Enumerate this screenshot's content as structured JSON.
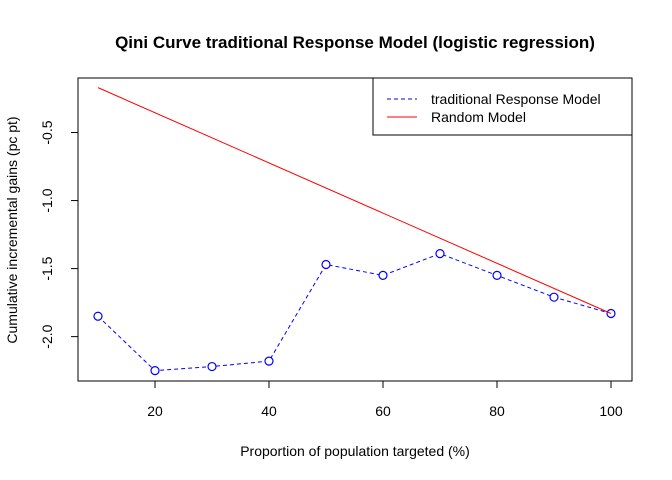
{
  "chart_data": {
    "type": "line",
    "title": "Qini Curve traditional Response Model (logistic regression)",
    "xlabel": "Proportion of population targeted (%)",
    "ylabel": "Cumulative incremental gains (pc pt)",
    "xlim": [
      10,
      100
    ],
    "ylim": [
      -2.26,
      -0.18
    ],
    "x_ticks": [
      20,
      40,
      60,
      80,
      100
    ],
    "y_ticks": [
      -0.5,
      -1.0,
      -1.5,
      -2.0
    ],
    "x_tick_labels": [
      "20",
      "40",
      "60",
      "80",
      "100"
    ],
    "y_tick_labels": [
      "-0.5",
      "-1.0",
      "-1.5",
      "-2.0"
    ],
    "grid": false,
    "legend_position": "top-right",
    "series": [
      {
        "name": "traditional Response Model",
        "color": "#0000ff",
        "style": "dashed-with-points",
        "x": [
          10,
          20,
          30,
          40,
          50,
          60,
          70,
          80,
          90,
          100
        ],
        "y": [
          -1.85,
          -2.25,
          -2.22,
          -2.18,
          -1.47,
          -1.55,
          -1.39,
          -1.55,
          -1.71,
          -1.83
        ]
      },
      {
        "name": "Random Model",
        "color": "#ff0000",
        "style": "solid",
        "x": [
          10,
          100
        ],
        "y": [
          -0.17,
          -1.83
        ]
      }
    ]
  }
}
